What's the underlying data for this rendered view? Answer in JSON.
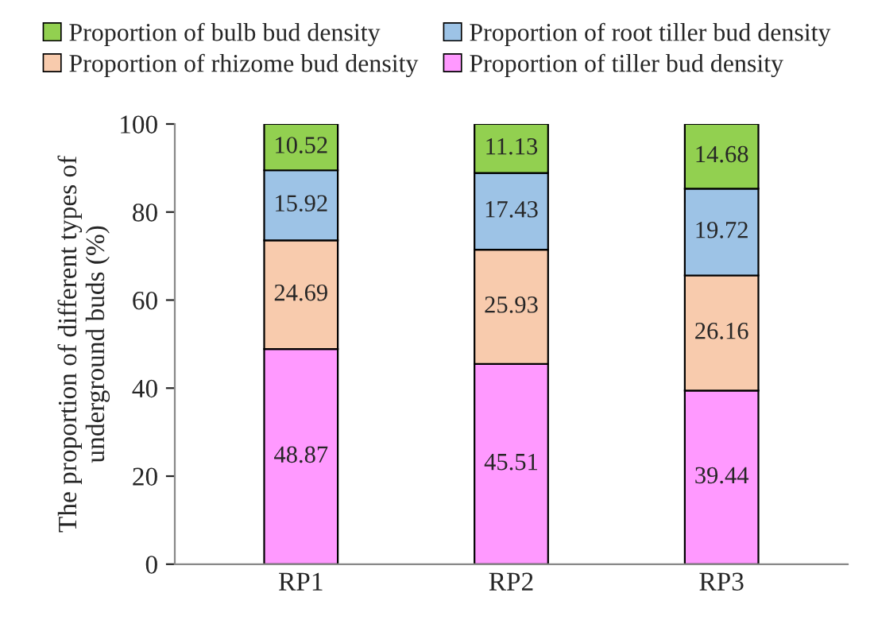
{
  "chart_data": {
    "type": "bar",
    "stacked": true,
    "ylabel": "The proportion of different types of\nunderground buds (%)",
    "categories": [
      "RP1",
      "RP2",
      "RP3"
    ],
    "series": [
      {
        "name": "Proportion of tiller bud density",
        "color": "#ff99ff",
        "values": [
          48.87,
          45.51,
          39.44
        ]
      },
      {
        "name": "Proportion of rhizome bud density",
        "color": "#f8cbad",
        "values": [
          24.69,
          25.93,
          26.16
        ]
      },
      {
        "name": "Proportion of root tiller bud density",
        "color": "#9dc3e6",
        "values": [
          15.92,
          17.43,
          19.72
        ]
      },
      {
        "name": "Proportion of bulb bud density",
        "color": "#92d050",
        "values": [
          10.52,
          11.13,
          14.68
        ]
      }
    ],
    "ylim": [
      0,
      100
    ],
    "yticks": [
      0,
      20,
      40,
      60,
      80,
      100
    ],
    "data_labels": true,
    "legend": "top",
    "grid": false
  }
}
